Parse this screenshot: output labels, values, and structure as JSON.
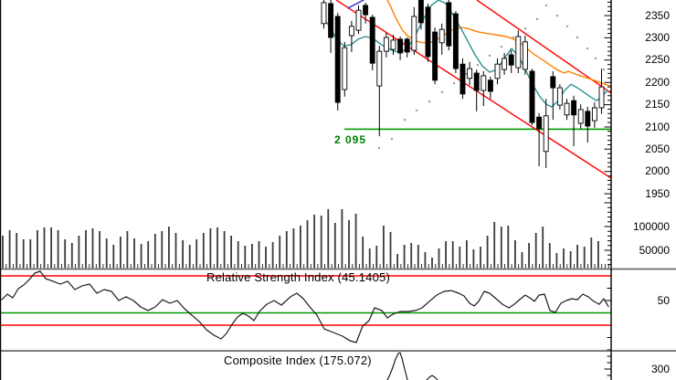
{
  "colors": {
    "background": "#ffffff",
    "up_candle_fill": "#ffffff",
    "down_candle_fill": "#000000",
    "candle_outline": "#000000",
    "ma_fast": "#2e9090",
    "ma_slow": "#ff8000",
    "ma_fragment": "#3333cc",
    "channel_line": "#ff0000",
    "support_line": "#009900",
    "support_label": "#008000",
    "sar_dot": "#999999",
    "volume_bar": "#3a3a3a",
    "indicator_line": "#1a1a1a",
    "level_red": "#ff0000",
    "level_green": "#009900",
    "divider": "#6e6e6e",
    "axis": "#000000",
    "text": "#000000"
  },
  "chart_data": [
    {
      "id": "price",
      "type": "candlestick",
      "title": "",
      "ylim": [
        1944,
        2385
      ],
      "y_ticks": [
        2350,
        2300,
        2250,
        2200,
        2150,
        2100,
        2050,
        2000,
        1950
      ],
      "support": {
        "value": 2095,
        "label": "2 095"
      },
      "channel_lines": [
        {
          "from": [
            522,
            2385
          ],
          "to": [
            669,
            2176
          ]
        },
        {
          "from": [
            368,
            2385
          ],
          "to": [
            669,
            1985
          ]
        }
      ],
      "candles": [
        [
          2332,
          2385,
          2321,
          2379
        ],
        [
          2377,
          2385,
          2266,
          2301
        ],
        [
          2348,
          2356,
          2137,
          2155
        ],
        [
          2184,
          2291,
          2168,
          2278
        ],
        [
          2305,
          2338,
          2268,
          2326
        ],
        [
          2317,
          2373,
          2309,
          2362
        ],
        [
          2373,
          2379,
          2332,
          2352
        ],
        [
          2346,
          2352,
          2227,
          2243
        ],
        [
          2192,
          2282,
          2079,
          2270
        ],
        [
          2270,
          2311,
          2256,
          2301
        ],
        [
          2274,
          2307,
          2262,
          2295
        ],
        [
          2297,
          2303,
          2250,
          2266
        ],
        [
          2297,
          2301,
          2256,
          2268
        ],
        [
          2272,
          2369,
          2262,
          2348
        ],
        [
          2385,
          2385,
          2319,
          2334
        ],
        [
          2369,
          2377,
          2246,
          2258
        ],
        [
          2313,
          2323,
          2196,
          2205
        ],
        [
          2289,
          2332,
          2262,
          2319
        ],
        [
          2379,
          2385,
          2272,
          2282
        ],
        [
          2354,
          2360,
          2221,
          2231
        ],
        [
          2241,
          2254,
          2163,
          2174
        ],
        [
          2209,
          2246,
          2194,
          2231
        ],
        [
          2221,
          2229,
          2135,
          2182
        ],
        [
          2182,
          2225,
          2147,
          2215
        ],
        [
          2205,
          2213,
          2163,
          2180
        ],
        [
          2209,
          2254,
          2196,
          2241
        ],
        [
          2229,
          2266,
          2217,
          2254
        ],
        [
          2262,
          2272,
          2221,
          2239
        ],
        [
          2233,
          2317,
          2221,
          2303
        ],
        [
          2229,
          2305,
          2217,
          2291
        ],
        [
          2225,
          2231,
          2104,
          2110
        ],
        [
          2122,
          2131,
          2012,
          2096
        ],
        [
          2045,
          2163,
          2008,
          2125
        ],
        [
          2213,
          2225,
          2116,
          2188
        ],
        [
          2149,
          2196,
          2139,
          2188
        ],
        [
          2127,
          2163,
          2116,
          2153
        ],
        [
          2159,
          2170,
          2057,
          2127
        ],
        [
          2108,
          2151,
          2096,
          2139
        ],
        [
          2135,
          2145,
          2065,
          2102
        ],
        [
          2114,
          2155,
          2098,
          2143
        ],
        [
          2143,
          2231,
          2129,
          2190
        ]
      ],
      "ma_fast_points": [
        [
          352,
          2348
        ],
        [
          360,
          2328
        ],
        [
          368,
          2299
        ],
        [
          376,
          2282
        ],
        [
          384,
          2284
        ],
        [
          392,
          2297
        ],
        [
          400,
          2303
        ],
        [
          408,
          2299
        ],
        [
          416,
          2287
        ],
        [
          424,
          2276
        ],
        [
          432,
          2270
        ],
        [
          440,
          2268
        ],
        [
          448,
          2282
        ],
        [
          456,
          2311
        ],
        [
          464,
          2344
        ],
        [
          472,
          2373
        ],
        [
          480,
          2385
        ],
        [
          488,
          2377
        ],
        [
          496,
          2352
        ],
        [
          504,
          2323
        ],
        [
          512,
          2293
        ],
        [
          520,
          2262
        ],
        [
          528,
          2237
        ],
        [
          536,
          2223
        ],
        [
          544,
          2229
        ],
        [
          552,
          2254
        ],
        [
          560,
          2276
        ],
        [
          568,
          2258
        ],
        [
          576,
          2225
        ],
        [
          584,
          2192
        ],
        [
          591,
          2168
        ],
        [
          598,
          2151
        ],
        [
          604,
          2145
        ],
        [
          611,
          2159
        ],
        [
          618,
          2182
        ],
        [
          625,
          2196
        ],
        [
          632,
          2188
        ],
        [
          639,
          2178
        ],
        [
          646,
          2168
        ],
        [
          653,
          2159
        ],
        [
          659,
          2168
        ],
        [
          665,
          2182
        ]
      ],
      "ma_slow_points": [
        [
          424,
          2385
        ],
        [
          428,
          2369
        ],
        [
          432,
          2350
        ],
        [
          436,
          2334
        ],
        [
          440,
          2319
        ],
        [
          446,
          2305
        ],
        [
          452,
          2297
        ],
        [
          458,
          2291
        ],
        [
          464,
          2289
        ],
        [
          470,
          2289
        ],
        [
          476,
          2293
        ],
        [
          482,
          2301
        ],
        [
          488,
          2309
        ],
        [
          494,
          2317
        ],
        [
          500,
          2321
        ],
        [
          506,
          2323
        ],
        [
          512,
          2321
        ],
        [
          518,
          2317
        ],
        [
          524,
          2313
        ],
        [
          530,
          2311
        ],
        [
          536,
          2309
        ],
        [
          542,
          2307
        ],
        [
          548,
          2305
        ],
        [
          554,
          2303
        ],
        [
          560,
          2299
        ],
        [
          566,
          2293
        ],
        [
          572,
          2285
        ],
        [
          578,
          2274
        ],
        [
          584,
          2264
        ],
        [
          590,
          2256
        ],
        [
          596,
          2248
        ],
        [
          602,
          2239
        ],
        [
          608,
          2231
        ],
        [
          613,
          2225
        ],
        [
          618,
          2221
        ],
        [
          622,
          2225
        ],
        [
          627,
          2221
        ],
        [
          632,
          2217
        ],
        [
          638,
          2213
        ],
        [
          644,
          2209
        ],
        [
          650,
          2205
        ],
        [
          656,
          2200
        ],
        [
          662,
          2196
        ],
        [
          668,
          2192
        ]
      ],
      "ma_fragment_points": [
        [
          381,
          2367
        ],
        [
          398,
          2385
        ]
      ],
      "sar_points": [
        [
          415,
          2053
        ],
        [
          429,
          2073
        ],
        [
          443,
          2116
        ],
        [
          456,
          2137
        ],
        [
          470,
          2157
        ],
        [
          484,
          2178
        ],
        [
          497,
          2198
        ],
        [
          510,
          2219
        ],
        [
          523,
          2239
        ],
        [
          536,
          2260
        ],
        [
          549,
          2280
        ],
        [
          562,
          2301
        ],
        [
          575,
          2321
        ],
        [
          588,
          2342
        ],
        [
          598,
          2373
        ],
        [
          610,
          2350
        ],
        [
          621,
          2326
        ],
        [
          632,
          2301
        ],
        [
          643,
          2276
        ],
        [
          652,
          2254
        ],
        [
          661,
          2229
        ]
      ]
    },
    {
      "id": "volume",
      "type": "bar",
      "y_ticks": [
        100000,
        50000
      ],
      "values": [
        80800,
        92300,
        86500,
        73100,
        73100,
        92300,
        98100,
        98100,
        92300,
        73100,
        65400,
        80800,
        92300,
        96200,
        90400,
        75000,
        61500,
        78800,
        90400,
        75000,
        63500,
        69200,
        84600,
        90400,
        100000,
        86500,
        71200,
        61500,
        73100,
        86500,
        96200,
        98100,
        90400,
        80800,
        69200,
        59600,
        63500,
        69200,
        57700,
        67300,
        80800,
        90400,
        96200,
        101900,
        113500,
        125000,
        123100,
        136500,
        107700,
        136500,
        113500,
        126900,
        78800,
        53800,
        59600,
        101900,
        88500,
        42300,
        61500,
        65400,
        61500,
        46200,
        34600,
        53800,
        69200,
        69200,
        57700,
        71200,
        51900,
        57700,
        80800,
        109600,
        100000,
        101900,
        71200,
        46200,
        65400,
        86500,
        100000,
        65400,
        44200,
        53800,
        48100,
        61500,
        57700,
        76900,
        69200
      ]
    },
    {
      "id": "rsi",
      "type": "line",
      "title": "Relative Strength Index (45.1405)",
      "last_value": 45.1405,
      "y_ticks": [
        50
      ],
      "levels": [
        {
          "value": 70,
          "color_key": "level_red"
        },
        {
          "value": 40,
          "color_key": "level_green"
        },
        {
          "value": 30,
          "color_key": "level_red"
        }
      ],
      "points": [
        [
          2,
          50.7
        ],
        [
          8,
          55.2
        ],
        [
          14,
          52.2
        ],
        [
          20,
          59.6
        ],
        [
          26,
          62.6
        ],
        [
          32,
          67.0
        ],
        [
          38,
          72.2
        ],
        [
          44,
          73.7
        ],
        [
          50,
          67.8
        ],
        [
          58,
          65.6
        ],
        [
          66,
          63.3
        ],
        [
          74,
          65.6
        ],
        [
          82,
          58.9
        ],
        [
          90,
          61.9
        ],
        [
          98,
          63.3
        ],
        [
          106,
          55.9
        ],
        [
          114,
          58.9
        ],
        [
          122,
          57.4
        ],
        [
          130,
          50.0
        ],
        [
          138,
          53.0
        ],
        [
          146,
          50.0
        ],
        [
          154,
          44.8
        ],
        [
          162,
          41.9
        ],
        [
          170,
          44.8
        ],
        [
          178,
          50.7
        ],
        [
          186,
          47.8
        ],
        [
          194,
          50.0
        ],
        [
          202,
          43.3
        ],
        [
          210,
          38.1
        ],
        [
          218,
          33.0
        ],
        [
          226,
          26.3
        ],
        [
          234,
          21.9
        ],
        [
          242,
          18.9
        ],
        [
          248,
          23.3
        ],
        [
          254,
          30.7
        ],
        [
          260,
          36.7
        ],
        [
          266,
          39.6
        ],
        [
          272,
          37.4
        ],
        [
          278,
          33.7
        ],
        [
          284,
          41.1
        ],
        [
          292,
          47.0
        ],
        [
          300,
          50.0
        ],
        [
          308,
          46.3
        ],
        [
          318,
          53.0
        ],
        [
          325,
          55.9
        ],
        [
          332,
          51.5
        ],
        [
          340,
          44.1
        ],
        [
          347,
          38.1
        ],
        [
          355,
          27.0
        ],
        [
          365,
          24.1
        ],
        [
          375,
          21.1
        ],
        [
          383,
          17.4
        ],
        [
          390,
          15.9
        ],
        [
          397,
          29.3
        ],
        [
          404,
          33.7
        ],
        [
          410,
          44.1
        ],
        [
          418,
          41.9
        ],
        [
          424,
          35.9
        ],
        [
          430,
          38.9
        ],
        [
          438,
          41.1
        ],
        [
          447,
          41.1
        ],
        [
          455,
          41.9
        ],
        [
          462,
          44.1
        ],
        [
          470,
          49.3
        ],
        [
          478,
          54.4
        ],
        [
          486,
          57.4
        ],
        [
          494,
          58.1
        ],
        [
          502,
          55.9
        ],
        [
          508,
          53.7
        ],
        [
          514,
          47.8
        ],
        [
          519,
          45.6
        ],
        [
          524,
          49.3
        ],
        [
          530,
          57.4
        ],
        [
          536,
          55.9
        ],
        [
          543,
          51.5
        ],
        [
          550,
          47.0
        ],
        [
          557,
          44.1
        ],
        [
          563,
          47.0
        ],
        [
          570,
          51.5
        ],
        [
          575,
          54.4
        ],
        [
          580,
          52.2
        ],
        [
          585,
          49.3
        ],
        [
          590,
          54.4
        ],
        [
          596,
          55.2
        ],
        [
          602,
          41.9
        ],
        [
          608,
          40.4
        ],
        [
          614,
          47.8
        ],
        [
          620,
          50.0
        ],
        [
          626,
          51.5
        ],
        [
          632,
          50.7
        ],
        [
          638,
          55.2
        ],
        [
          644,
          53.0
        ],
        [
          650,
          49.3
        ],
        [
          656,
          47.0
        ],
        [
          661,
          51.5
        ],
        [
          666,
          45.1
        ]
      ]
    },
    {
      "id": "composite",
      "type": "line",
      "title": "Composite Index (175.072)",
      "last_value": 175.072,
      "y_ticks": [
        300
      ],
      "points": [
        [
          424,
          257
        ],
        [
          427,
          279
        ],
        [
          430,
          307
        ],
        [
          433,
          339
        ],
        [
          436,
          361
        ],
        [
          438,
          364
        ],
        [
          440,
          343
        ],
        [
          442,
          314
        ],
        [
          444,
          286
        ],
        [
          446,
          257
        ]
      ],
      "points2": [
        [
          467,
          257
        ],
        [
          470,
          268
        ],
        [
          473,
          275
        ],
        [
          476,
          268
        ],
        [
          479,
          257
        ]
      ]
    }
  ]
}
